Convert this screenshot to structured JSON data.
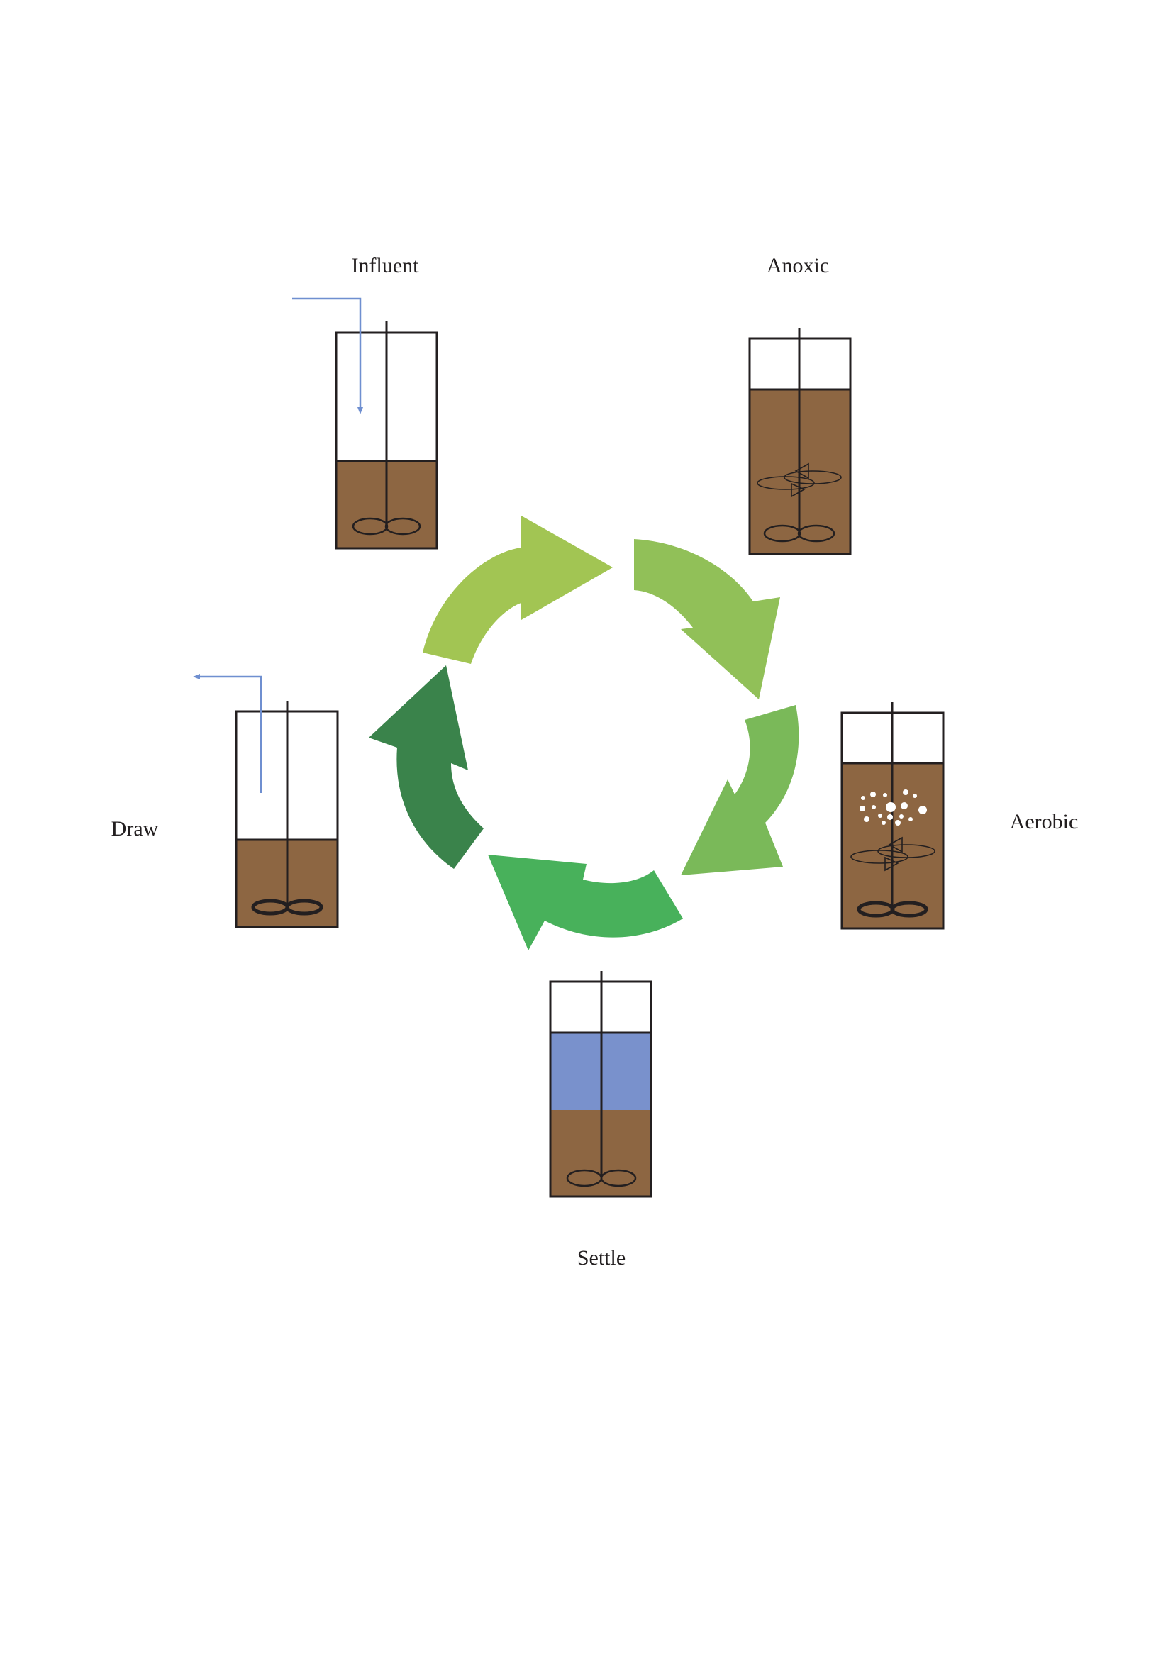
{
  "stages": {
    "influent": {
      "label": "Influent"
    },
    "anoxic": {
      "label": "Anoxic"
    },
    "aerobic": {
      "label": "Aerobic"
    },
    "settle": {
      "label": "Settle"
    },
    "draw": {
      "label": "Draw"
    }
  },
  "colors": {
    "sludge": "#8d6642",
    "clear_water": "#7991cc",
    "outline": "#231f20",
    "pipe": "#6f8fd0",
    "arrow_influent_to_anoxic": "#a2c553",
    "arrow_anoxic_to_aerobic": "#91c058",
    "arrow_aerobic_to_settle": "#7ab959",
    "arrow_settle_to_draw": "#48b15b",
    "arrow_draw_to_influent": "#3a834b"
  },
  "cycle_order": [
    "Influent",
    "Anoxic",
    "Aerobic",
    "Settle",
    "Draw"
  ]
}
